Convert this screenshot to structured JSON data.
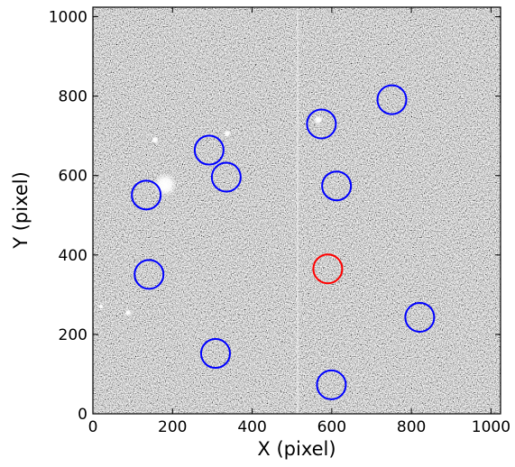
{
  "chart_data": {
    "type": "scatter",
    "xlabel": "X (pixel)",
    "ylabel": "Y (pixel)",
    "xlim": [
      0,
      1024
    ],
    "ylim": [
      0,
      1024
    ],
    "xticks": [
      0,
      200,
      400,
      600,
      800,
      1000
    ],
    "yticks": [
      0,
      200,
      400,
      600,
      800,
      1000
    ],
    "series": [
      {
        "color": "#0000ff",
        "x": [
          292,
          335,
          134,
          141,
          308,
          574,
          751,
          612,
          821,
          599
        ],
        "y": [
          664,
          596,
          551,
          351,
          152,
          730,
          791,
          574,
          243,
          73
        ]
      },
      {
        "color": "#ff0000",
        "x": [
          590
        ],
        "y": [
          365
        ]
      }
    ]
  }
}
